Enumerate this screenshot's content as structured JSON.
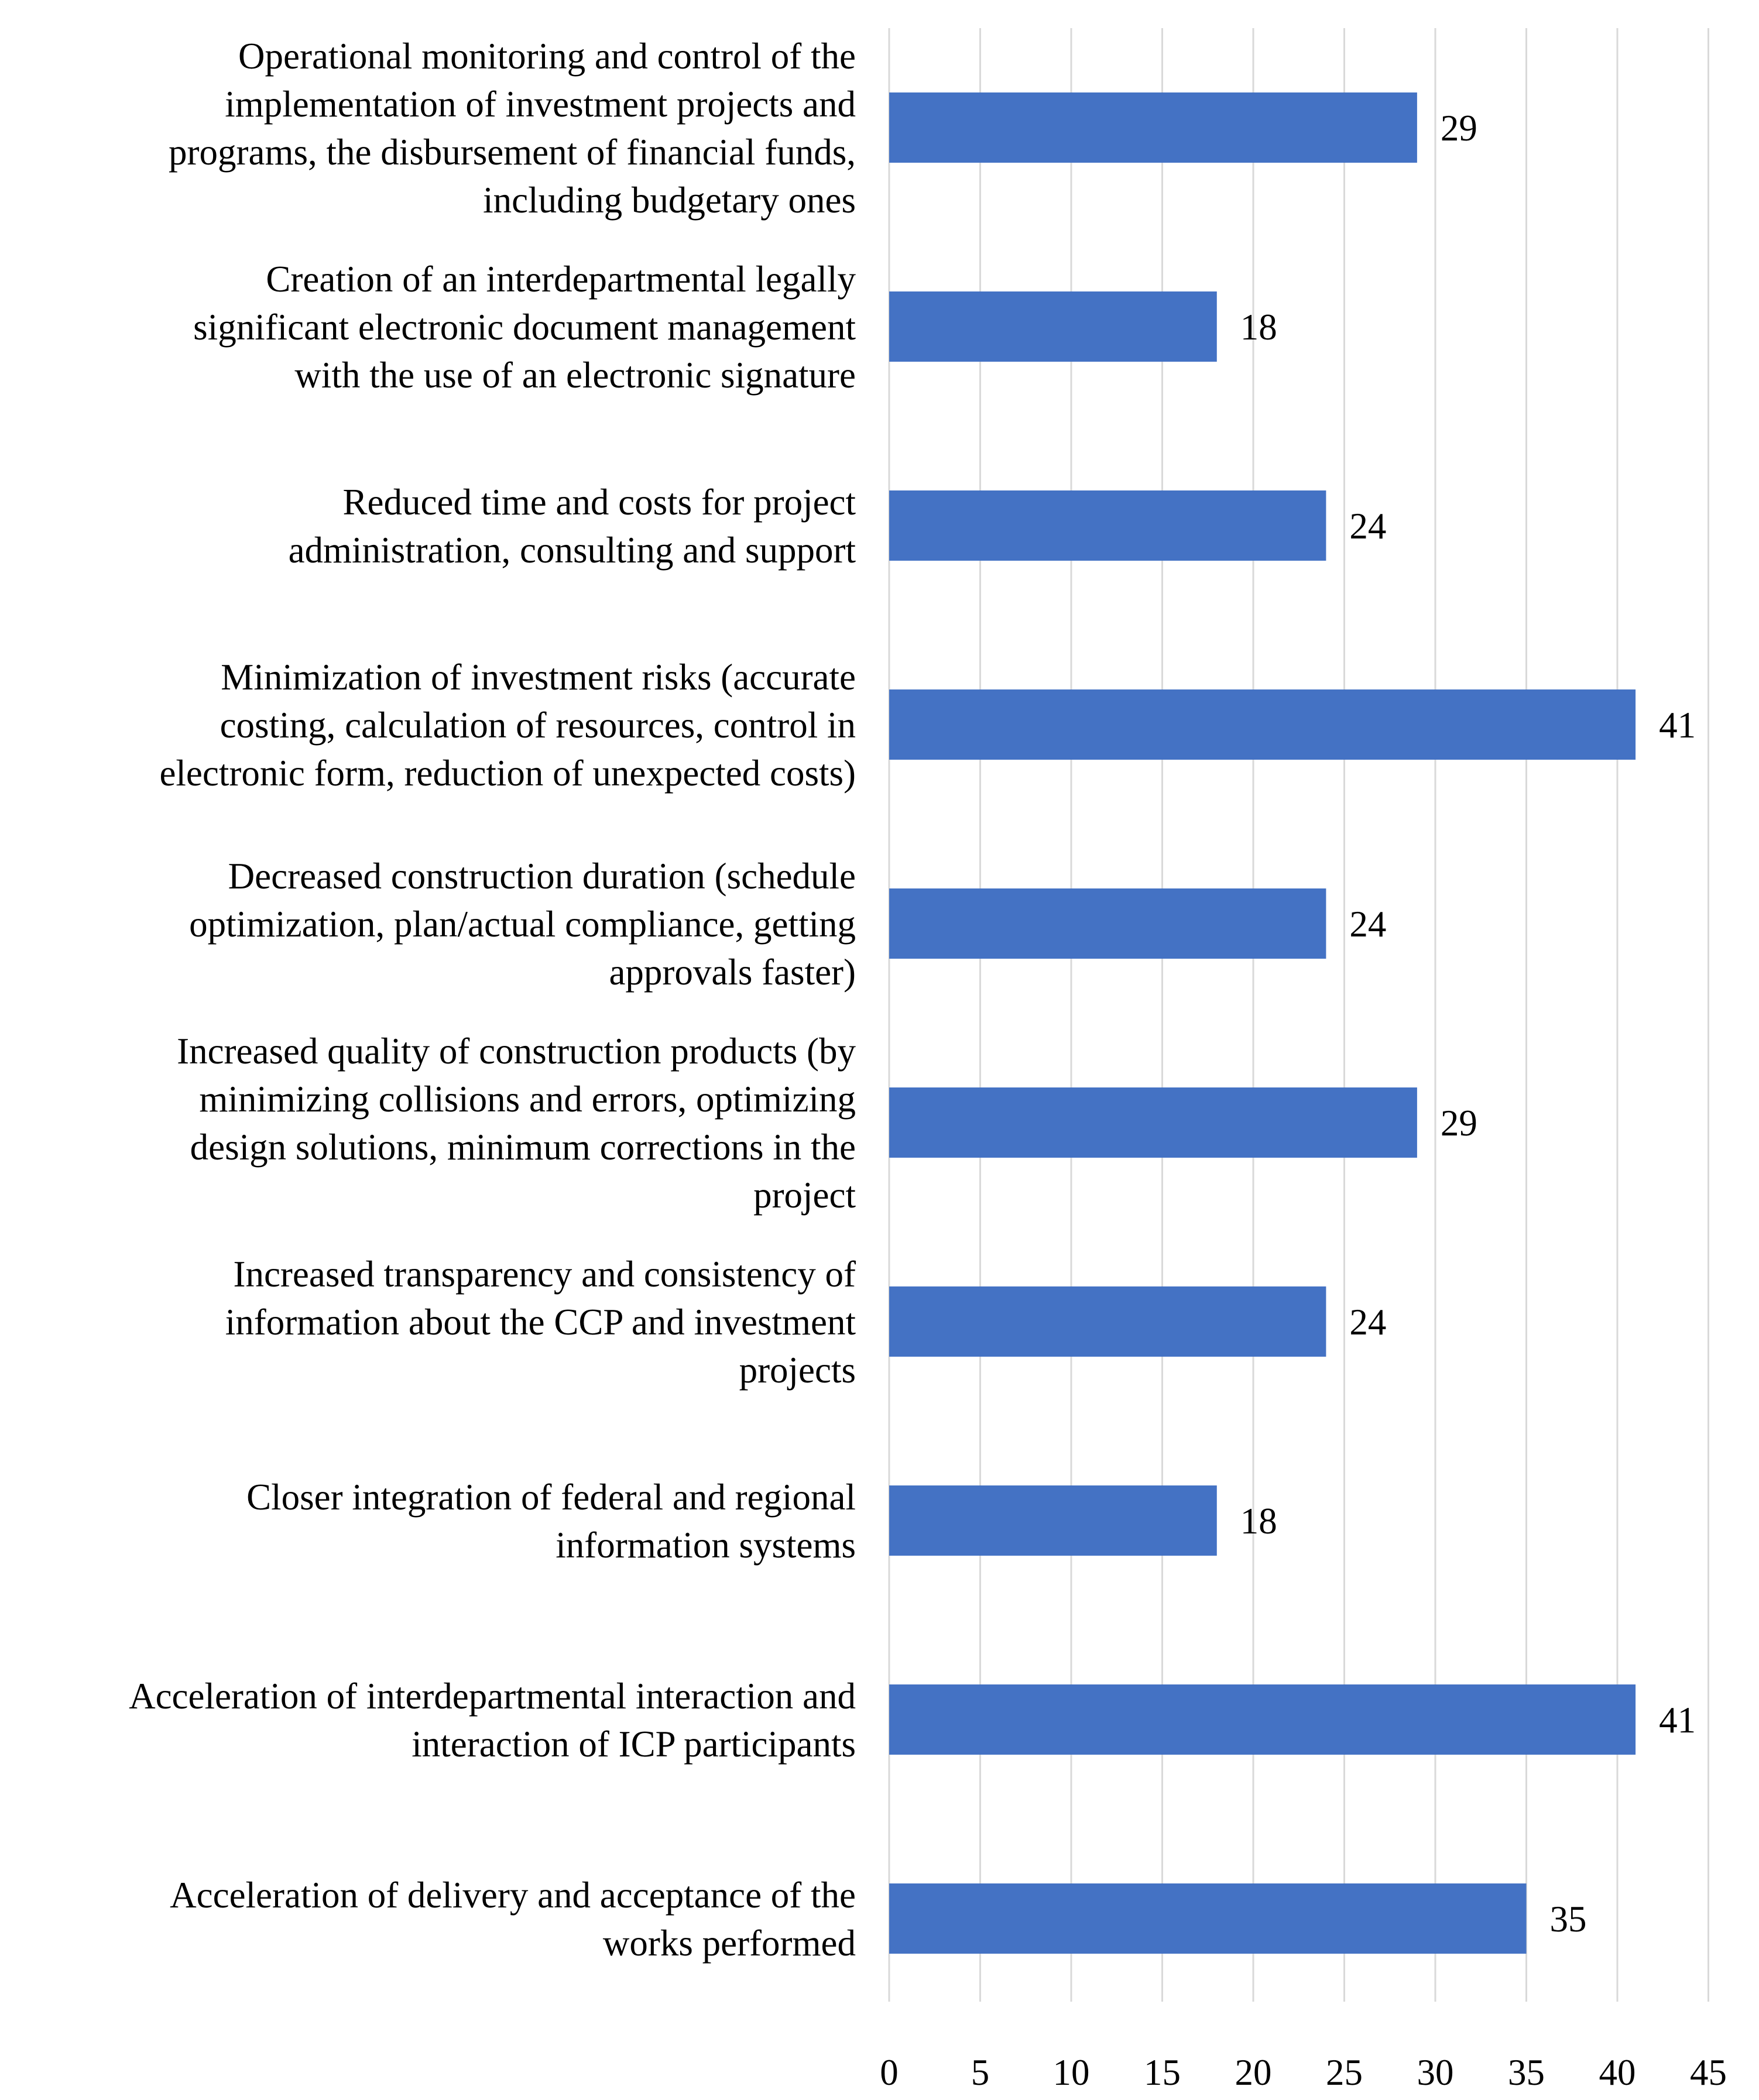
{
  "chart_data": {
    "type": "bar",
    "orientation": "horizontal",
    "title": "",
    "xlabel": "",
    "ylabel": "",
    "xlim": [
      0,
      45
    ],
    "x_ticks": [
      0,
      5,
      10,
      15,
      20,
      25,
      30,
      35,
      40,
      45
    ],
    "grid": "vertical",
    "bar_color": "#4472C4",
    "grid_color": "#D9D9D9",
    "categories": [
      [
        "Operational monitoring and control of the",
        "implementation of investment projects and",
        "programs, the disbursement of financial funds,",
        "including budgetary ones"
      ],
      [
        "Creation of an interdepartmental legally",
        "significant electronic document management",
        "with the use of an electronic signature"
      ],
      [
        "Reduced time and costs for project",
        "administration, consulting and support"
      ],
      [
        "Minimization of investment risks (accurate",
        "costing, calculation of resources, control in",
        "electronic form, reduction of unexpected costs)"
      ],
      [
        "Decreased construction duration (schedule",
        "optimization, plan/actual compliance, getting",
        "approvals faster)"
      ],
      [
        "Increased quality of construction products (by",
        "minimizing collisions and errors, optimizing",
        "design solutions, minimum corrections in the",
        "project"
      ],
      [
        "Increased transparency and consistency of",
        "information about the CCP and investment",
        "projects"
      ],
      [
        "Closer integration of federal and regional",
        "information systems"
      ],
      [
        "Acceleration of interdepartmental interaction and",
        "interaction of ICP participants"
      ],
      [
        "Acceleration of delivery and acceptance of the",
        "works performed"
      ]
    ],
    "values": [
      29,
      18,
      24,
      41,
      24,
      29,
      24,
      18,
      41,
      35
    ],
    "data_labels": [
      "29",
      "18",
      "24",
      "41",
      "24",
      "29",
      "24",
      "18",
      "41",
      "35"
    ]
  }
}
